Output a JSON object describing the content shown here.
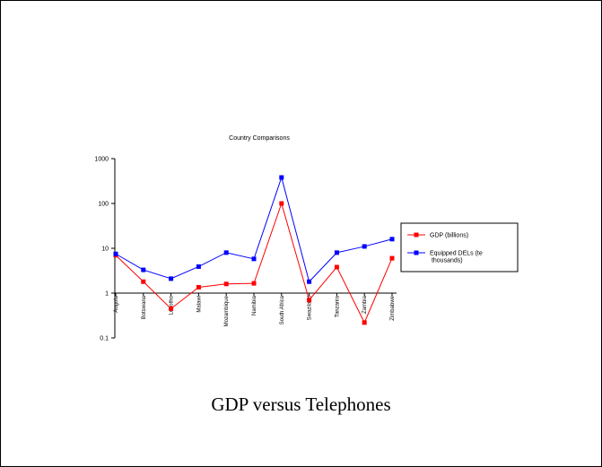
{
  "slide": {
    "caption": "GDP versus Telephones"
  },
  "chart_data": {
    "type": "line",
    "title": "Country Comparisons",
    "xlabel": "",
    "ylabel": "",
    "y_scale": "log",
    "ylim": [
      0.1,
      1000
    ],
    "y_ticks": [
      "0.1",
      "1",
      "10",
      "100",
      "1000"
    ],
    "categories": [
      "Angola",
      "Botswana",
      "Lesotho",
      "Malawi",
      "Mozambique",
      "Namibia",
      "South Africa",
      "Swaziland",
      "Tanzania",
      "Zambia",
      "Zimbabwe"
    ],
    "series": [
      {
        "name": "GDP (billions)",
        "color": "#ff0000",
        "values": [
          7.0,
          1.8,
          0.45,
          1.35,
          1.6,
          1.65,
          100,
          0.7,
          3.8,
          0.22,
          6.0
        ]
      },
      {
        "name": "Equipped DELs (ten thousands)",
        "color": "#0000ff",
        "values": [
          7.5,
          3.3,
          2.1,
          3.9,
          8.0,
          5.8,
          380,
          1.8,
          8.0,
          11.0,
          16.0
        ]
      }
    ],
    "legend_position": "right",
    "grid": false
  }
}
